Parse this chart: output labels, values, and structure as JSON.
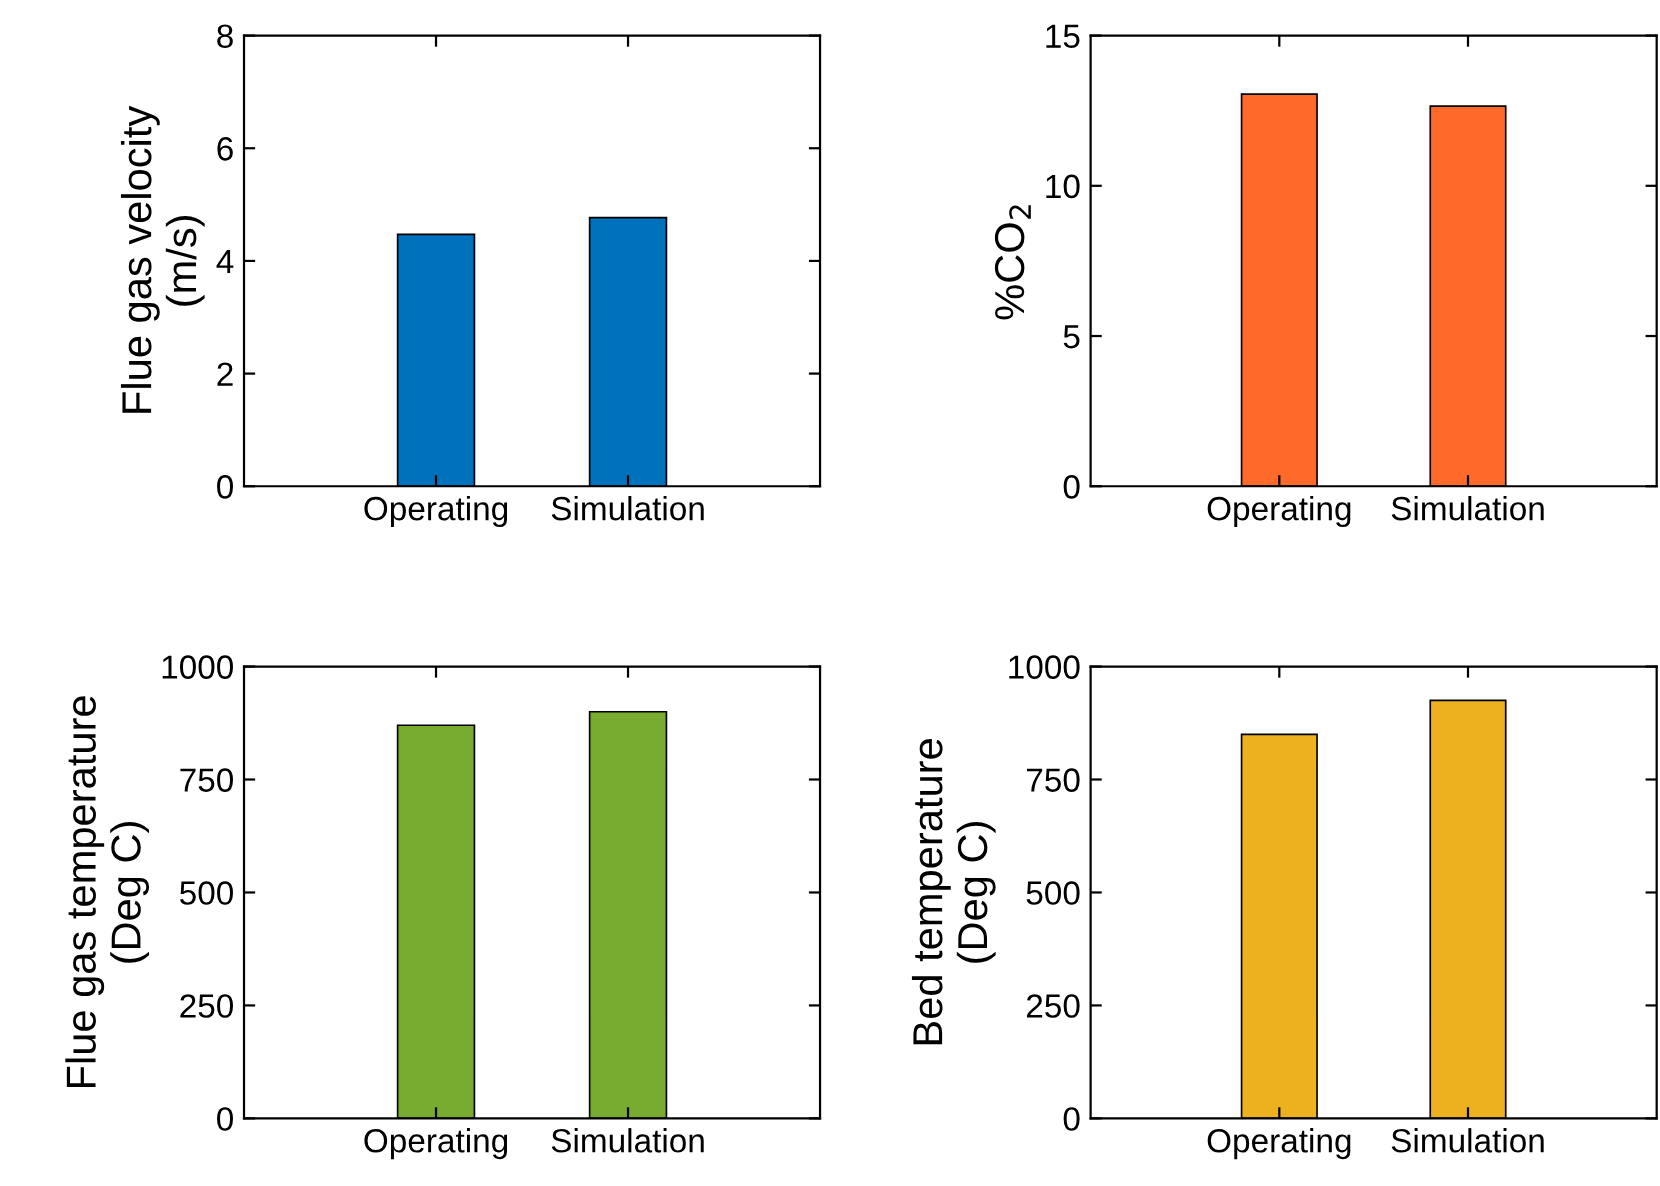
{
  "chart_data": [
    {
      "type": "bar",
      "categories": [
        "Operating",
        "Simulation"
      ],
      "values": [
        4.47,
        4.77
      ],
      "color": "#0072bd",
      "ylabel": "Flue gas velocity\n(m/s)",
      "ylim": [
        0,
        8
      ],
      "yticks": [
        0,
        2,
        4,
        6,
        8
      ],
      "grid": false
    },
    {
      "type": "bar",
      "categories": [
        "Operating",
        "Simulation"
      ],
      "values": [
        13.05,
        12.65
      ],
      "color": "#ff6929",
      "ylabel": "%CO$_{2}$",
      "ylim": [
        0,
        15
      ],
      "yticks": [
        0,
        5,
        10,
        15
      ],
      "grid": false
    },
    {
      "type": "bar",
      "categories": [
        "Operating",
        "Simulation"
      ],
      "values": [
        870,
        900
      ],
      "color": "#77ac30",
      "ylabel": "Flue gas temperature\n(Deg C)",
      "ylim": [
        0,
        1000
      ],
      "yticks": [
        0,
        250,
        500,
        750,
        1000
      ],
      "grid": false
    },
    {
      "type": "bar",
      "categories": [
        "Operating",
        "Simulation"
      ],
      "values": [
        850,
        925
      ],
      "color": "#edb120",
      "ylabel": "Bed temperature\n(Deg C)",
      "ylim": [
        0,
        1000
      ],
      "yticks": [
        0,
        250,
        500,
        750,
        1000
      ],
      "grid": false
    }
  ]
}
